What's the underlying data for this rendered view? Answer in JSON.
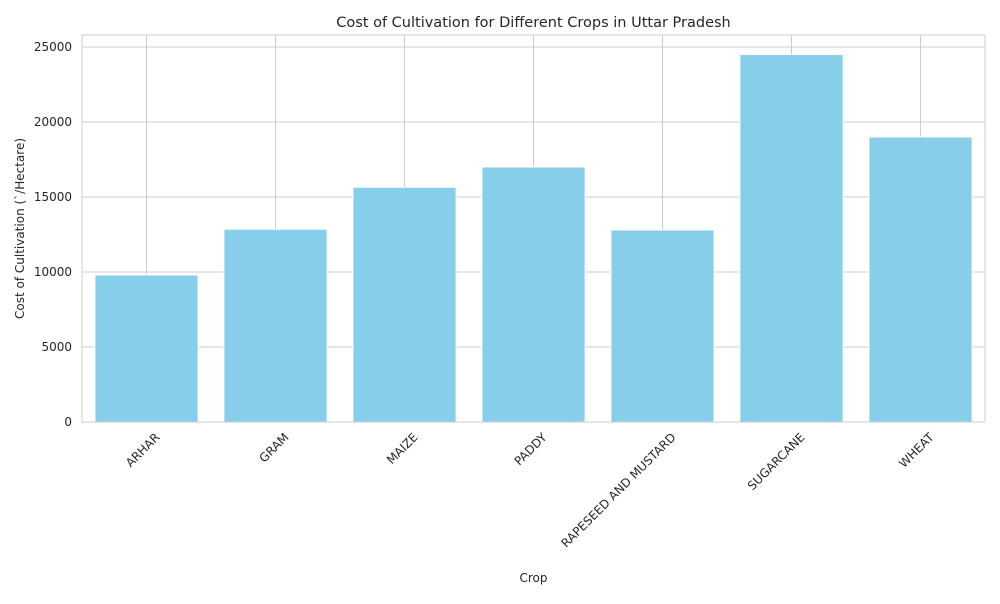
{
  "chart_data": {
    "type": "bar",
    "title": "Cost of Cultivation for Different Crops in Uttar Pradesh",
    "xlabel": "Crop",
    "ylabel": "Cost of Cultivation (`/Hectare)",
    "categories": [
      "ARHAR",
      "GRAM",
      "MAIZE",
      "PADDY",
      "RAPESEED AND MUSTARD",
      "SUGARCANE",
      "WHEAT"
    ],
    "values": [
      9800,
      12850,
      15650,
      17000,
      12800,
      24500,
      19000
    ],
    "ylim": [
      0,
      25800
    ],
    "yticks": [
      0,
      5000,
      10000,
      15000,
      20000,
      25000
    ],
    "bar_color": "#87CEEB",
    "grid": true,
    "xtick_rotation": 45
  }
}
